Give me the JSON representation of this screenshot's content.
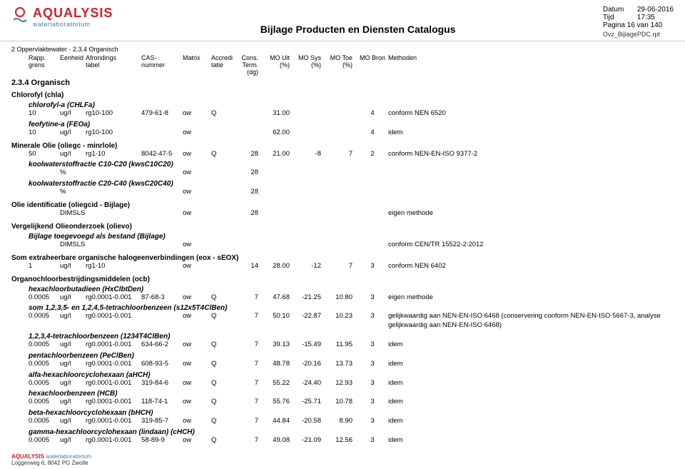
{
  "header": {
    "brand": "AQUALYSIS",
    "tagline": "waterlaboratorium",
    "title": "Bijlage Producten en Diensten Catalogus",
    "meta": {
      "date_label": "Datum",
      "date": "29-06-2016",
      "time_label": "Tijd",
      "time": "17:35",
      "page_label": "Pagina 16 van 140",
      "report": "Ovz_BijlagePDC.rpt"
    }
  },
  "columns": {
    "path": "2  Oppervlaktewater  -  2.3.4  Organisch",
    "row1": [
      "Rapp.",
      "Eenheid",
      "Afrondings",
      "CAS-",
      "Matrix",
      "Accredi",
      "Cons.",
      "MO Uit",
      "MO Sys",
      "MO Toe",
      "MO Bron",
      "Methoden"
    ],
    "row2": [
      "grens",
      "",
      "tabel",
      "nummer",
      "",
      "tatie",
      "Term. (dg)",
      "(%)",
      "(%)",
      "(%)",
      "",
      ""
    ]
  },
  "section_heading": "2.3.4  Organisch",
  "groups": [
    {
      "title": "Chlorofyl (chla)",
      "params": [
        {
          "name": "chlorofyl-a (CHLFa)",
          "rows": [
            [
              "10",
              "ug/l",
              "rg10-100",
              "479-61-8",
              "ow",
              "Q",
              "",
              "31.00",
              "",
              "",
              "4",
              "conform NEN 6520"
            ]
          ]
        },
        {
          "name": "feofytine-a (FEOa)",
          "rows": [
            [
              "10",
              "ug/l",
              "rg10-100",
              "",
              "ow",
              "",
              "",
              "62.00",
              "",
              "",
              "4",
              "idem"
            ]
          ]
        }
      ]
    },
    {
      "title": "Minerale Olie (oliegc - minrlole)",
      "params": [
        {
          "name": "",
          "rows": [
            [
              "50",
              "ug/l",
              "rg1-10",
              "8042-47-5",
              "ow",
              "Q",
              "28",
              "21.00",
              "-8",
              "7",
              "2",
              "conform NEN-EN-ISO 9377-2"
            ]
          ]
        },
        {
          "name": "koolwaterstoffractie C10-C20 (kwsC10C20)",
          "rows": [
            [
              "",
              "%",
              "",
              "",
              "ow",
              "",
              "28",
              "",
              "",
              "",
              "",
              ""
            ]
          ]
        },
        {
          "name": "koolwaterstoffractie C20-C40 (kwsC20C40)",
          "rows": [
            [
              "",
              "%",
              "",
              "",
              "ow",
              "",
              "28",
              "",
              "",
              "",
              "",
              ""
            ]
          ]
        }
      ]
    },
    {
      "title": "Olie identificatie (oliegcid - Bijlage)",
      "params": [
        {
          "name": "",
          "rows": [
            [
              "",
              "DIMSLS",
              "",
              "",
              "ow",
              "",
              "28",
              "",
              "",
              "",
              "",
              "eigen methode"
            ]
          ]
        }
      ]
    },
    {
      "title": "Vergelijkend Olieonderzoek (olievo)",
      "params": [
        {
          "name": "Bijlage toegevoegd als bestand (Bijlage)",
          "rows": [
            [
              "",
              "DIMSLS",
              "",
              "",
              "ow",
              "",
              "",
              "",
              "",
              "",
              "",
              "conform CEN/TR 15522-2:2012"
            ]
          ]
        }
      ]
    },
    {
      "title": "Som extraheerbare organische halogeenverbindingen (eox - sEOX)",
      "params": [
        {
          "name": "",
          "rows": [
            [
              "1",
              "ug/l",
              "rg1-10",
              "",
              "ow",
              "",
              "14",
              "28.00",
              "-12",
              "7",
              "3",
              "conform NEN 6402"
            ]
          ]
        }
      ]
    },
    {
      "title": "Organochloorbestrijdingsmiddelen (ocb)",
      "params": [
        {
          "name": "hexachloorbutadieen (HxClbtDen)",
          "rows": [
            [
              "0.0005",
              "ug/l",
              "rg0.0001-0.001",
              "87-68-3",
              "ow",
              "Q",
              "7",
              "47.68",
              "-21.25",
              "10.80",
              "3",
              "eigen methode"
            ]
          ]
        },
        {
          "name": "som 1,2,3,5- en 1,2,4,5-tetrachloorbenzeen (s12x5T4ClBen)",
          "rows": [
            [
              "0.0005",
              "ug/l",
              "rg0.0001-0.001",
              "",
              "ow",
              "Q",
              "7",
              "50.10",
              "-22.87",
              "10.23",
              "3",
              "gelijkwaardig aan NEN-EN-ISO 6468 (conservering conform NEN-EN-ISO 5667-3, analyse gelijkwaardig aan NEN-EN-ISO 6468)"
            ]
          ]
        },
        {
          "name": "1,2,3,4-tetrachloorbenzeen (1234T4ClBen)",
          "rows": [
            [
              "0.0005",
              "ug/l",
              "rg0.0001-0.001",
              "634-66-2",
              "ow",
              "Q",
              "7",
              "39.13",
              "-15.49",
              "11.95",
              "3",
              "idem"
            ]
          ]
        },
        {
          "name": "pentachloorbenzeen (PeClBen)",
          "rows": [
            [
              "0.0005",
              "ug/l",
              "rg0.0001-0.001",
              "608-93-5",
              "ow",
              "Q",
              "7",
              "48.78",
              "-20.16",
              "13.73",
              "3",
              "idem"
            ]
          ]
        },
        {
          "name": "alfa-hexachloorcyclohexaan (aHCH)",
          "rows": [
            [
              "0.0005",
              "ug/l",
              "rg0.0001-0.001",
              "319-84-6",
              "ow",
              "Q",
              "7",
              "55.22",
              "-24.40",
              "12.93",
              "3",
              "idem"
            ]
          ]
        },
        {
          "name": "hexachloorbenzeen (HCB)",
          "rows": [
            [
              "0.0005",
              "ug/l",
              "rg0.0001-0.001",
              "118-74-1",
              "ow",
              "Q",
              "7",
              "55.76",
              "-25.71",
              "10.78",
              "3",
              "idem"
            ]
          ]
        },
        {
          "name": "beta-hexachloorcyclohexaan (bHCH)",
          "rows": [
            [
              "0.0005",
              "ug/l",
              "rg0.0001-0.001",
              "319-85-7",
              "ow",
              "Q",
              "7",
              "44.84",
              "-20.58",
              "8.90",
              "3",
              "idem"
            ]
          ]
        },
        {
          "name": "gamma-hexachloorcyclohexaan (lindaan) (cHCH)",
          "rows": [
            [
              "0.0005",
              "ug/l",
              "rg0.0001-0.001",
              "58-89-9",
              "ow",
              "Q",
              "7",
              "49.08",
              "-21.09",
              "12.56",
              "3",
              "idem"
            ]
          ]
        }
      ]
    }
  ],
  "footer": {
    "brand": "AQUALYSIS",
    "lab": " waterlaboratorium",
    "address": "Loggerweg 6, 8042 PG Zwolle"
  },
  "colors": {
    "brand_red": "#d32027",
    "brand_blue": "#4b7aa8",
    "text": "#000000",
    "divider": "#cccccc",
    "bg": "#ffffff"
  }
}
